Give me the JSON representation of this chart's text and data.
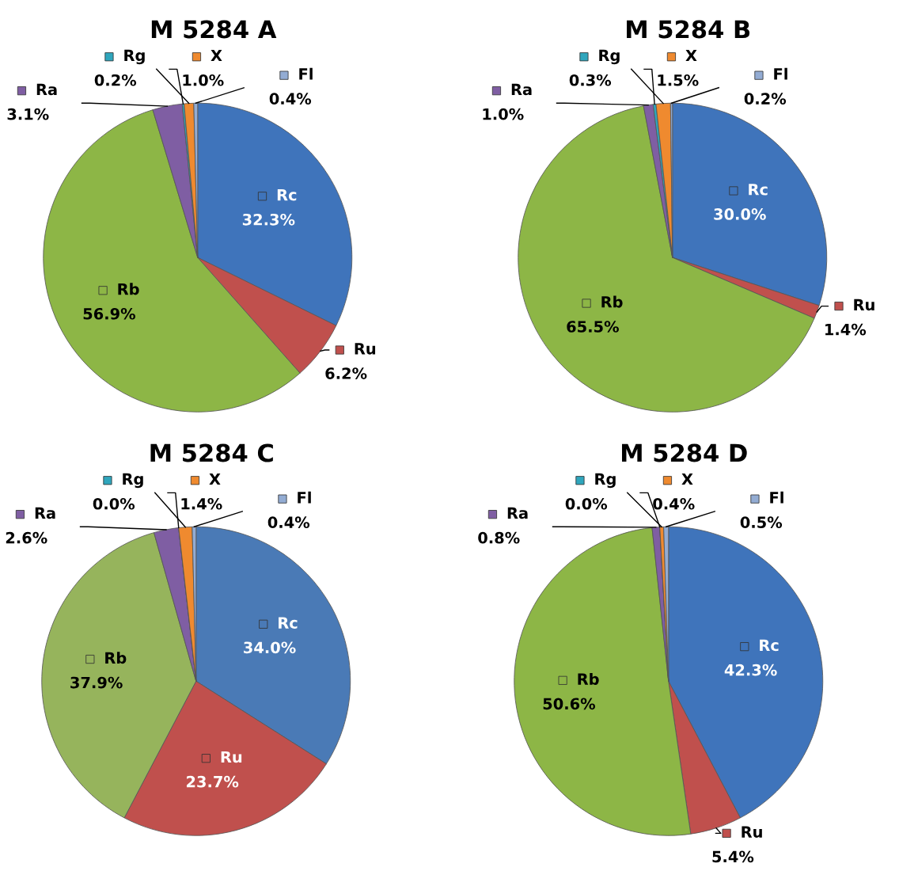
{
  "chart_data": [
    {
      "type": "pie",
      "legend": "top left",
      "title": "M 5284 A",
      "categories": [
        "Rc",
        "Ru",
        "Rb",
        "Ra",
        "Rg",
        "X",
        "Fl"
      ],
      "values": [
        32.3,
        6.2,
        56.9,
        3.1,
        0.2,
        1.0,
        0.4
      ],
      "colors": [
        "#3f74bb",
        "#c0504d",
        "#8db646",
        "#7f5ea3",
        "#2fa6bd",
        "#ef8a2f",
        "#93acd3"
      ],
      "value_labels": [
        "32.3%",
        "6.2%",
        "56.9%",
        "3.1%",
        "0.2%",
        "1.0%",
        "0.4%"
      ]
    },
    {
      "type": "pie",
      "legend": "top left",
      "title": "M 5284 B",
      "categories": [
        "Rc",
        "Ru",
        "Rb",
        "Ra",
        "Rg",
        "X",
        "Fl"
      ],
      "values": [
        30.0,
        1.4,
        65.5,
        1.0,
        0.3,
        1.5,
        0.2
      ],
      "colors": [
        "#3f74bb",
        "#c0504d",
        "#8db646",
        "#7f5ea3",
        "#2fa6bd",
        "#ef8a2f",
        "#93acd3"
      ],
      "value_labels": [
        "30.0%",
        "1.4%",
        "65.5%",
        "1.0%",
        "0.3%",
        "1.5%",
        "0.2%"
      ]
    },
    {
      "type": "pie",
      "legend": "top left",
      "title": "M 5284 C",
      "categories": [
        "Rc",
        "Ru",
        "Rb",
        "Ra",
        "Rg",
        "X",
        "Fl"
      ],
      "values": [
        34.0,
        23.7,
        37.9,
        2.6,
        0.0,
        1.4,
        0.4
      ],
      "colors": [
        "#4a7ab6",
        "#c0504d",
        "#96b45c",
        "#7f5ea3",
        "#2fa6bd",
        "#ef8a2f",
        "#93acd3"
      ],
      "value_labels": [
        "34.0%",
        "23.7%",
        "37.9%",
        "2.6%",
        "0.0%",
        "1.4%",
        "0.4%"
      ]
    },
    {
      "type": "pie",
      "legend": "top left",
      "title": "M 5284 D",
      "categories": [
        "Rc",
        "Ru",
        "Rb",
        "Ra",
        "Rg",
        "X",
        "Fl"
      ],
      "values": [
        42.3,
        5.4,
        50.6,
        0.8,
        0.0,
        0.4,
        0.5
      ],
      "colors": [
        "#3f74bb",
        "#c0504d",
        "#8db646",
        "#7f5ea3",
        "#2fa6bd",
        "#ef8a2f",
        "#93acd3"
      ],
      "value_labels": [
        "42.3%",
        "5.4%",
        "50.6%",
        "0.8%",
        "0.0%",
        "0.4%",
        "0.5%"
      ]
    }
  ]
}
